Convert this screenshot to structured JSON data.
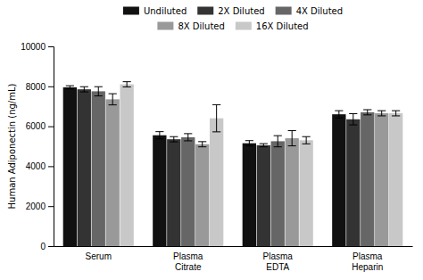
{
  "chart_data": {
    "type": "bar",
    "categories": [
      "Serum",
      "Plasma\nCitrate",
      "Plasma\nEDTA",
      "Plasma\nHeparin"
    ],
    "series": [
      {
        "name": "Undiluted",
        "color": "#111111",
        "values": [
          7950,
          5550,
          5150,
          6600
        ],
        "errors": [
          80,
          180,
          130,
          180
        ]
      },
      {
        "name": "2X Diluted",
        "color": "#333333",
        "values": [
          7850,
          5350,
          5050,
          6350
        ],
        "errors": [
          130,
          130,
          80,
          280
        ]
      },
      {
        "name": "4X Diluted",
        "color": "#666666",
        "values": [
          7750,
          5450,
          5250,
          6700
        ],
        "errors": [
          230,
          180,
          280,
          130
        ]
      },
      {
        "name": "8X Diluted",
        "color": "#999999",
        "values": [
          7350,
          5100,
          5400,
          6650
        ],
        "errors": [
          280,
          130,
          380,
          130
        ]
      },
      {
        "name": "16X Diluted",
        "color": "#c8c8c8",
        "values": [
          8100,
          6400,
          5300,
          6650
        ],
        "errors": [
          130,
          680,
          180,
          130
        ]
      }
    ],
    "ylabel": "Human Adiponectin (ng/mL)",
    "ylim": [
      0,
      10000
    ],
    "yticks": [
      0,
      2000,
      4000,
      6000,
      8000,
      10000
    ],
    "grid": false,
    "legend": "top"
  }
}
